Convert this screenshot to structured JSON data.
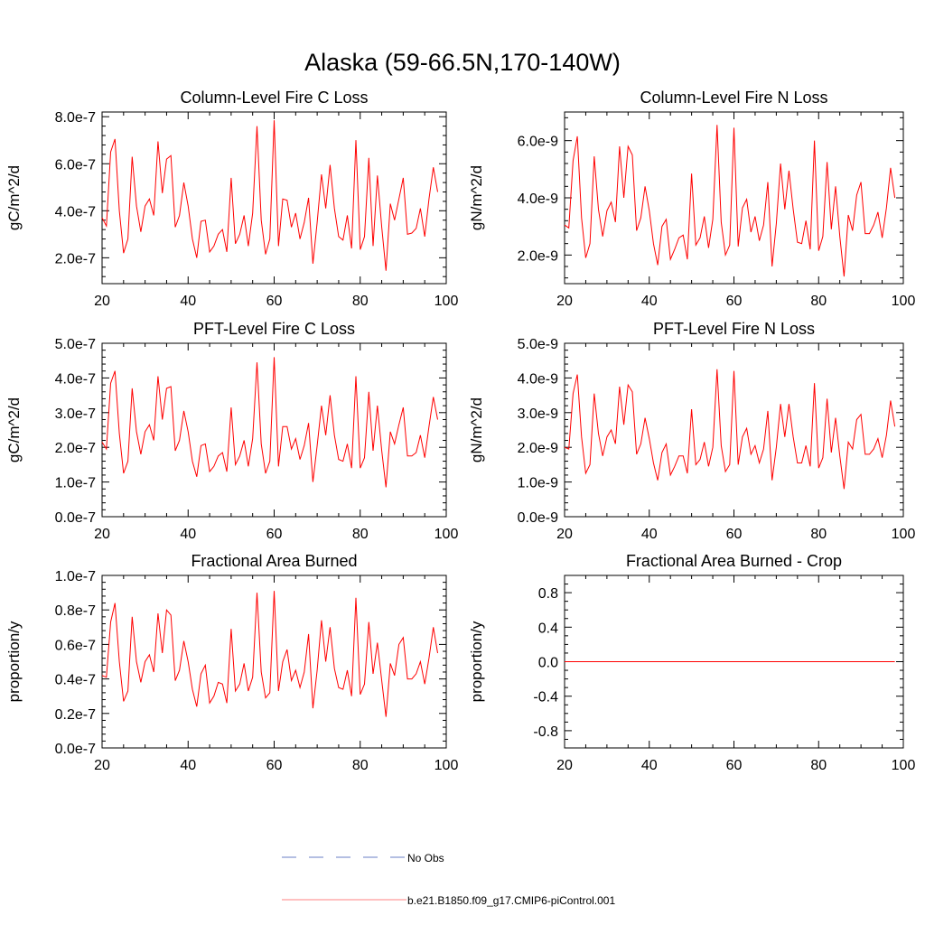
{
  "title": "Alaska (59-66.5N,170-140W)",
  "series_colors": {
    "model": "#ff0000",
    "obs": "#6a7fc4"
  },
  "legend": [
    {
      "label": "No Obs",
      "style": "dashed",
      "color": "#6a7fc4"
    },
    {
      "label": "b.e21.B1850.f09_g17.CMIP6-piControl.001",
      "style": "solid",
      "color": "#ff8080"
    }
  ],
  "chart_data": [
    {
      "type": "line",
      "title": "Column-Level Fire C Loss",
      "ylabel": "gC/m^2/d",
      "xlim": [
        20,
        100
      ],
      "ylim": [
        9e-08,
        8.2e-07
      ],
      "xticks": [
        20,
        40,
        60,
        80,
        100
      ],
      "xtick_labels": [
        "20",
        "40",
        "60",
        "80",
        "100"
      ],
      "yticks": [
        2e-07,
        4e-07,
        6e-07,
        8e-07
      ],
      "ytick_labels": [
        "2.0e-7",
        "4.0e-7",
        "6.0e-7",
        "8.0e-7"
      ],
      "yminor": 4e-08,
      "series": [
        {
          "x_start": 20,
          "x_step": 1,
          "values": [
            3.7e-07,
            3.35e-07,
            6.5e-07,
            7.05e-07,
            4e-07,
            2.2e-07,
            2.8e-07,
            6.3e-07,
            4.2e-07,
            3.1e-07,
            4.2e-07,
            4.5e-07,
            3.8e-07,
            6.95e-07,
            4.75e-07,
            6.2e-07,
            6.35e-07,
            3.3e-07,
            3.8e-07,
            5.2e-07,
            4.2e-07,
            2.8e-07,
            2e-07,
            3.55e-07,
            3.6e-07,
            2.25e-07,
            2.5e-07,
            3e-07,
            3.2e-07,
            2.25e-07,
            5.4e-07,
            2.6e-07,
            3e-07,
            3.8e-07,
            2.5e-07,
            3.9e-07,
            7.6e-07,
            3.6e-07,
            2.15e-07,
            2.8e-07,
            7.85e-07,
            2.5e-07,
            4.5e-07,
            4.45e-07,
            3.3e-07,
            3.9e-07,
            2.8e-07,
            3.5e-07,
            4.55e-07,
            1.75e-07,
            3.5e-07,
            5.55e-07,
            4.1e-07,
            5.95e-07,
            4.1e-07,
            2.9e-07,
            2.75e-07,
            3.8e-07,
            2.4e-07,
            7e-07,
            2.35e-07,
            2.9e-07,
            6.25e-07,
            2.5e-07,
            5.5e-07,
            3.3e-07,
            1.45e-07,
            4.3e-07,
            3.6e-07,
            4.5e-07,
            5.4e-07,
            3e-07,
            3.05e-07,
            3.25e-07,
            4.1e-07,
            2.9e-07,
            4.5e-07,
            5.85e-07,
            4.8e-07
          ]
        }
      ]
    },
    {
      "type": "line",
      "title": "Column-Level Fire N Loss",
      "ylabel": "gN/m^2/d",
      "xlim": [
        20,
        100
      ],
      "ylim": [
        1e-09,
        7e-09
      ],
      "xticks": [
        20,
        40,
        60,
        80,
        100
      ],
      "xtick_labels": [
        "20",
        "40",
        "60",
        "80",
        "100"
      ],
      "yticks": [
        2e-09,
        4e-09,
        6e-09
      ],
      "ytick_labels": [
        "2.0e-9",
        "4.0e-9",
        "6.0e-9"
      ],
      "yminor": 4e-10,
      "series": [
        {
          "x_start": 20,
          "x_step": 1,
          "values": [
            3.05e-09,
            2.95e-09,
            5.3e-09,
            6.15e-09,
            3.3e-09,
            1.9e-09,
            2.4e-09,
            5.45e-09,
            3.6e-09,
            2.65e-09,
            3.55e-09,
            3.85e-09,
            3.15e-09,
            5.8e-09,
            4e-09,
            5.8e-09,
            5.5e-09,
            2.85e-09,
            3.3e-09,
            4.4e-09,
            3.55e-09,
            2.4e-09,
            1.65e-09,
            3e-09,
            3.25e-09,
            1.85e-09,
            2.2e-09,
            2.6e-09,
            2.7e-09,
            1.85e-09,
            4.85e-09,
            2.35e-09,
            2.6e-09,
            3.35e-09,
            2.25e-09,
            3.25e-09,
            6.55e-09,
            3.15e-09,
            2e-09,
            2.35e-09,
            6.45e-09,
            2.3e-09,
            3.65e-09,
            3.95e-09,
            2.8e-09,
            3.35e-09,
            2.5e-09,
            3.05e-09,
            4.55e-09,
            1.6e-09,
            3.1e-09,
            5.2e-09,
            3.6e-09,
            4.95e-09,
            3.6e-09,
            2.45e-09,
            2.4e-09,
            3.2e-09,
            2.2e-09,
            6e-09,
            2.15e-09,
            2.65e-09,
            5.25e-09,
            2.9e-09,
            4.4e-09,
            2.65e-09,
            1.25e-09,
            3.4e-09,
            2.85e-09,
            4.1e-09,
            4.55e-09,
            2.75e-09,
            2.75e-09,
            3.05e-09,
            3.5e-09,
            2.6e-09,
            3.65e-09,
            5.05e-09,
            4e-09
          ]
        }
      ]
    },
    {
      "type": "line",
      "title": "PFT-Level Fire C Loss",
      "ylabel": "gC/m^2/d",
      "xlim": [
        20,
        100
      ],
      "ylim": [
        0,
        5e-07
      ],
      "xticks": [
        20,
        40,
        60,
        80,
        100
      ],
      "xtick_labels": [
        "20",
        "40",
        "60",
        "80",
        "100"
      ],
      "yticks": [
        0,
        1e-07,
        2e-07,
        3e-07,
        4e-07,
        5e-07
      ],
      "ytick_labels": [
        "0.0e-7",
        "1.0e-7",
        "2.0e-7",
        "3.0e-7",
        "4.0e-7",
        "5.0e-7"
      ],
      "yminor": 2e-08,
      "series": [
        {
          "x_start": 20,
          "x_step": 1,
          "values": [
            2.15e-07,
            1.95e-07,
            3.85e-07,
            4.2e-07,
            2.4e-07,
            1.25e-07,
            1.6e-07,
            3.7e-07,
            2.45e-07,
            1.8e-07,
            2.45e-07,
            2.65e-07,
            2.2e-07,
            4.05e-07,
            2.8e-07,
            3.7e-07,
            3.75e-07,
            1.9e-07,
            2.2e-07,
            3.05e-07,
            2.45e-07,
            1.6e-07,
            1.15e-07,
            2.05e-07,
            2.1e-07,
            1.3e-07,
            1.45e-07,
            1.75e-07,
            1.85e-07,
            1.3e-07,
            3.15e-07,
            1.5e-07,
            1.75e-07,
            2.2e-07,
            1.45e-07,
            2.25e-07,
            4.45e-07,
            2.1e-07,
            1.25e-07,
            1.6e-07,
            4.6e-07,
            1.45e-07,
            2.6e-07,
            2.6e-07,
            1.95e-07,
            2.25e-07,
            1.65e-07,
            2.05e-07,
            2.7e-07,
            1e-07,
            2.05e-07,
            3.2e-07,
            2.35e-07,
            3.5e-07,
            2.35e-07,
            1.65e-07,
            1.6e-07,
            2.1e-07,
            1.4e-07,
            4.05e-07,
            1.4e-07,
            1.7e-07,
            3.6e-07,
            1.9e-07,
            3.2e-07,
            1.9e-07,
            8.5e-08,
            2.45e-07,
            2.1e-07,
            2.65e-07,
            3.15e-07,
            1.75e-07,
            1.75e-07,
            1.85e-07,
            2.35e-07,
            1.7e-07,
            2.6e-07,
            3.45e-07,
            2.8e-07
          ]
        }
      ]
    },
    {
      "type": "line",
      "title": "PFT-Level Fire N Loss",
      "ylabel": "gN/m^2/d",
      "xlim": [
        20,
        100
      ],
      "ylim": [
        0,
        5e-09
      ],
      "xticks": [
        20,
        40,
        60,
        80,
        100
      ],
      "xtick_labels": [
        "20",
        "40",
        "60",
        "80",
        "100"
      ],
      "yticks": [
        0,
        1e-09,
        2e-09,
        3e-09,
        4e-09,
        5e-09
      ],
      "ytick_labels": [
        "0.0e-9",
        "1.0e-9",
        "2.0e-9",
        "3.0e-9",
        "4.0e-9",
        "5.0e-9"
      ],
      "yminor": 2e-10,
      "series": [
        {
          "x_start": 20,
          "x_step": 1,
          "values": [
            2e-09,
            1.95e-09,
            3.55e-09,
            4.1e-09,
            2.3e-09,
            1.25e-09,
            1.5e-09,
            3.55e-09,
            2.4e-09,
            1.75e-09,
            2.3e-09,
            2.5e-09,
            2.1e-09,
            3.75e-09,
            2.65e-09,
            3.8e-09,
            3.6e-09,
            1.8e-09,
            2.1e-09,
            2.85e-09,
            2.25e-09,
            1.55e-09,
            1.05e-09,
            1.85e-09,
            2.1e-09,
            1.2e-09,
            1.45e-09,
            1.75e-09,
            1.75e-09,
            1.25e-09,
            3.1e-09,
            1.5e-09,
            1.65e-09,
            2.15e-09,
            1.45e-09,
            2e-09,
            4.25e-09,
            2.05e-09,
            1.3e-09,
            1.5e-09,
            4.2e-09,
            1.5e-09,
            2.3e-09,
            2.55e-09,
            1.8e-09,
            2.05e-09,
            1.55e-09,
            1.95e-09,
            3.05e-09,
            1.05e-09,
            2e-09,
            3.25e-09,
            2.3e-09,
            3.25e-09,
            2.3e-09,
            1.55e-09,
            1.55e-09,
            2.05e-09,
            1.45e-09,
            3.85e-09,
            1.4e-09,
            1.7e-09,
            3.4e-09,
            1.85e-09,
            2.85e-09,
            1.75e-09,
            8e-10,
            2.15e-09,
            1.95e-09,
            2.8e-09,
            2.95e-09,
            1.8e-09,
            1.8e-09,
            1.95e-09,
            2.25e-09,
            1.7e-09,
            2.35e-09,
            3.35e-09,
            2.6e-09
          ]
        }
      ]
    },
    {
      "type": "line",
      "title": "Fractional Area Burned",
      "ylabel": "proportion/y",
      "xlim": [
        20,
        100
      ],
      "ylim": [
        0,
        1e-07
      ],
      "xticks": [
        20,
        40,
        60,
        80,
        100
      ],
      "xtick_labels": [
        "20",
        "40",
        "60",
        "80",
        "100"
      ],
      "yticks": [
        0,
        2e-08,
        4e-08,
        6e-08,
        8e-08,
        1e-07
      ],
      "ytick_labels": [
        "0.0e-7",
        "0.2e-7",
        "0.4e-7",
        "0.6e-7",
        "0.8e-7",
        "1.0e-7"
      ],
      "yminor": 4e-09,
      "series": [
        {
          "x_start": 20,
          "x_step": 1,
          "values": [
            4.2e-08,
            4.1e-08,
            7.3e-08,
            8.4e-08,
            5e-08,
            2.7e-08,
            3.3e-08,
            7.6e-08,
            5e-08,
            3.8e-08,
            5e-08,
            5.4e-08,
            4.4e-08,
            7.8e-08,
            5.5e-08,
            8e-08,
            7.7e-08,
            3.9e-08,
            4.5e-08,
            6.2e-08,
            5e-08,
            3.4e-08,
            2.4e-08,
            4.3e-08,
            4.8e-08,
            2.6e-08,
            3e-08,
            3.8e-08,
            3.7e-08,
            2.6e-08,
            6.9e-08,
            3.3e-08,
            3.7e-08,
            4.9e-08,
            3.3e-08,
            4.1e-08,
            9e-08,
            4.4e-08,
            2.9e-08,
            3.2e-08,
            9.1e-08,
            3.3e-08,
            5e-08,
            5.7e-08,
            3.9e-08,
            4.5e-08,
            3.5e-08,
            4.4e-08,
            6.6e-08,
            2.3e-08,
            4.5e-08,
            7.4e-08,
            5e-08,
            7e-08,
            4.6e-08,
            3.5e-08,
            3.4e-08,
            4.5e-08,
            3e-08,
            8.7e-08,
            3.1e-08,
            3.7e-08,
            7.3e-08,
            4.3e-08,
            6.1e-08,
            3.9e-08,
            1.8e-08,
            4.9e-08,
            4.2e-08,
            6e-08,
            6.4e-08,
            4e-08,
            4e-08,
            4.3e-08,
            5e-08,
            3.7e-08,
            5.2e-08,
            7e-08,
            5.5e-08
          ]
        }
      ]
    },
    {
      "type": "line",
      "title": "Fractional Area Burned - Crop",
      "ylabel": "proportion/y",
      "xlim": [
        20,
        100
      ],
      "ylim": [
        -1.0,
        1.0
      ],
      "xticks": [
        20,
        40,
        60,
        80,
        100
      ],
      "xtick_labels": [
        "20",
        "40",
        "60",
        "80",
        "100"
      ],
      "yticks": [
        -0.8,
        -0.4,
        0.0,
        0.4,
        0.8
      ],
      "ytick_labels": [
        "-0.8",
        "-0.4",
        "0.0",
        "0.4",
        "0.8"
      ],
      "yminor": 0.1,
      "series": [
        {
          "x_start": 20,
          "x_step": 1,
          "values": [
            0,
            0,
            0,
            0,
            0,
            0,
            0,
            0,
            0,
            0,
            0,
            0,
            0,
            0,
            0,
            0,
            0,
            0,
            0,
            0,
            0,
            0,
            0,
            0,
            0,
            0,
            0,
            0,
            0,
            0,
            0,
            0,
            0,
            0,
            0,
            0,
            0,
            0,
            0,
            0,
            0,
            0,
            0,
            0,
            0,
            0,
            0,
            0,
            0,
            0,
            0,
            0,
            0,
            0,
            0,
            0,
            0,
            0,
            0,
            0,
            0,
            0,
            0,
            0,
            0,
            0,
            0,
            0,
            0,
            0,
            0,
            0,
            0,
            0,
            0,
            0,
            0,
            0,
            0
          ]
        }
      ]
    }
  ]
}
